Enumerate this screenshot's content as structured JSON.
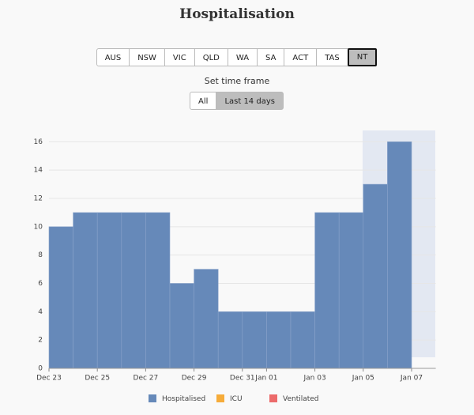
{
  "header": {
    "title": "Hospitalisation"
  },
  "region_buttons": [
    {
      "label": "AUS",
      "selected": false
    },
    {
      "label": "NSW",
      "selected": false
    },
    {
      "label": "VIC",
      "selected": false
    },
    {
      "label": "QLD",
      "selected": false
    },
    {
      "label": "WA",
      "selected": false
    },
    {
      "label": "SA",
      "selected": false
    },
    {
      "label": "ACT",
      "selected": false
    },
    {
      "label": "TAS",
      "selected": false
    },
    {
      "label": "NT",
      "selected": true
    }
  ],
  "time_frame": {
    "label": "Set time frame",
    "buttons": [
      {
        "label": "All",
        "selected": false
      },
      {
        "label": "Last 14 days",
        "selected": true
      }
    ]
  },
  "chart_data": {
    "type": "bar",
    "categories": [
      "Dec 23",
      null,
      "Dec 25",
      null,
      "Dec 27",
      null,
      "Dec 29",
      null,
      "Dec 31",
      "Jan 01",
      null,
      "Jan 03",
      null,
      "Jan 05",
      null,
      "Jan 07"
    ],
    "series": [
      {
        "name": "Hospitalised",
        "color": "#6689b9",
        "values": [
          10,
          11,
          11,
          11,
          11,
          6,
          7,
          4,
          4,
          4,
          4,
          11,
          11,
          13,
          16,
          null
        ]
      }
    ],
    "legend": [
      {
        "name": "Hospitalised",
        "color": "#6689b9"
      },
      {
        "name": "ICU",
        "color": "#f6ac3a"
      },
      {
        "name": "Ventilated",
        "color": "#ec6b6b"
      }
    ],
    "ylim": [
      0,
      16.8
    ],
    "yticks": [
      0,
      2,
      4,
      6,
      8,
      10,
      12,
      14,
      16
    ],
    "grid": true
  }
}
